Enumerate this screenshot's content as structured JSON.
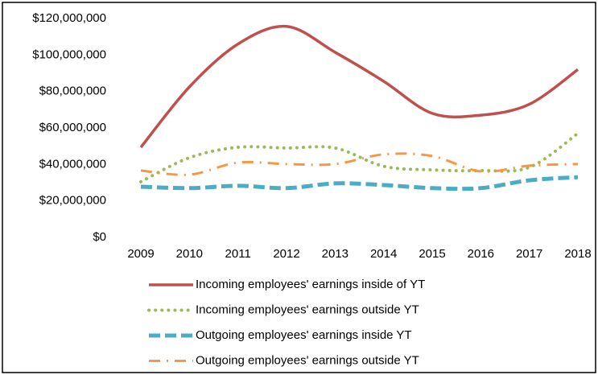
{
  "chart_data": {
    "type": "line",
    "categories": [
      "2009",
      "2010",
      "2011",
      "2012",
      "2013",
      "2014",
      "2015",
      "2016",
      "2017",
      "2018"
    ],
    "series": [
      {
        "name": "Incoming employees' earnings inside of YT",
        "color": "#c0504d",
        "style": "solid",
        "values": [
          49400000,
          82500000,
          106000000,
          115700000,
          101500000,
          85600000,
          68000000,
          67000000,
          73000000,
          92000000
        ]
      },
      {
        "name": "Incoming employees' earnings outside YT",
        "color": "#9bbb59",
        "style": "dotted",
        "values": [
          30500000,
          43700000,
          49400000,
          49000000,
          49000000,
          39000000,
          37000000,
          36600000,
          38400000,
          57000000
        ]
      },
      {
        "name": "Outgoing employees' earnings inside YT",
        "color": "#4bacc6",
        "style": "dashed",
        "values": [
          27800000,
          27000000,
          28300000,
          27000000,
          29600000,
          28700000,
          27000000,
          27000000,
          31300000,
          33000000
        ]
      },
      {
        "name": "Outgoing employees' earnings outside YT",
        "color": "#f79646",
        "style": "dashdot",
        "values": [
          36600000,
          34400000,
          41000000,
          40200000,
          40200000,
          45500000,
          44600000,
          36200000,
          39300000,
          40200000
        ]
      }
    ],
    "ylim": [
      0,
      120000000
    ],
    "yticks": [
      {
        "value": 0,
        "label": "$0"
      },
      {
        "value": 20000000,
        "label": "$20,000,000"
      },
      {
        "value": 40000000,
        "label": "$40,000,000"
      },
      {
        "value": 60000000,
        "label": "$60,000,000"
      },
      {
        "value": 80000000,
        "label": "$80,000,000"
      },
      {
        "value": 100000000,
        "label": "$100,000,000"
      },
      {
        "value": 120000000,
        "label": "$120,000,000"
      }
    ],
    "grid": false,
    "legend": "bottom"
  }
}
